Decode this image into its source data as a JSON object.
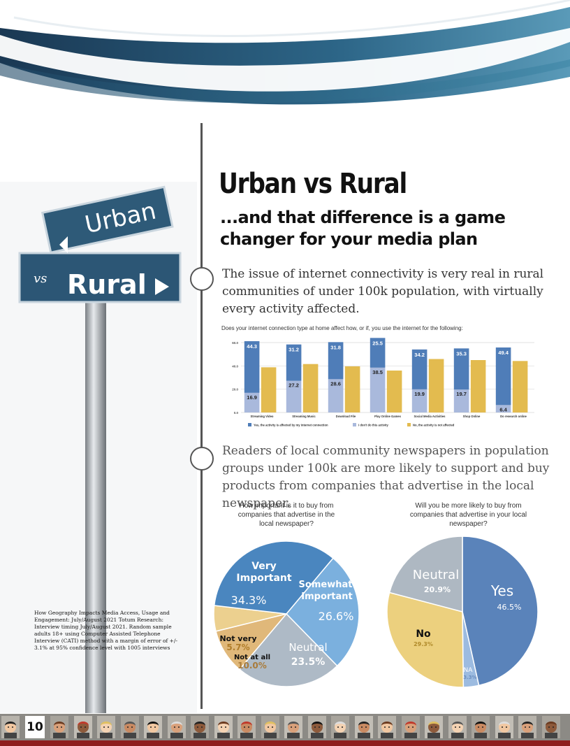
{
  "page": {
    "title": "Urban vs Rural",
    "subtitle": "...and that difference is a game changer for your media plan",
    "paragraph1": "The issue of internet connectivity is very real in rural communities of under 100k population, with virtually every activity affected.",
    "paragraph2": "Readers of local community newspapers in population groups under 100k are more likely to support and buy products from companies that advertise in the local newspaper.",
    "page_number": "10",
    "source_note": "How Geography Impacts Media Access, Usage and Engagement: July/August 2021 Totum Research: Interview timing July/August 2021. Random sample adults 18+ using Computer Assisted Telephone Interview (CATI) method with a margin of error of +/- 3.1% at 95% confidence level with 1005 interviews"
  },
  "sign": {
    "top": "Urban",
    "middle": "vs",
    "bottom": "Rural"
  },
  "colors": {
    "blue": "#4f7db8",
    "light_blue": "#a9b9dc",
    "gold": "#e3bb4f",
    "header_dark": "#1b3b57",
    "header_teal": "#3d86a6"
  },
  "chart_data": [
    {
      "type": "bar",
      "title": "Does your internet connection type at home affect how, or if, you use the internet for the following:",
      "categories": [
        "Streaming Video",
        "Streaming Music",
        "Download File",
        "Play Online Games",
        "Social Media Activities",
        "Shop Online",
        "Do research online"
      ],
      "series": [
        {
          "name": "Yes, the activity is affected by my internet connection",
          "values": [
            44.3,
            31.2,
            31.8,
            25.5,
            34.2,
            35.3,
            49.4
          ],
          "color": "#4f7db8"
        },
        {
          "name": "I don't do this activity",
          "values": [
            16.9,
            27.2,
            28.6,
            38.5,
            19.9,
            19.7,
            6.4
          ],
          "color": "#a9b9dc"
        },
        {
          "name": "No, the activity is not affected",
          "values": [
            38.8,
            41.6,
            39.6,
            36.0,
            45.9,
            45.0,
            44.2
          ],
          "color": "#e3bb4f"
        }
      ],
      "ylim": [
        0,
        60
      ],
      "yticks": [
        "0.0",
        "20.0",
        "40.0",
        "60.0"
      ],
      "grid": true,
      "legend": "bottom"
    },
    {
      "type": "pie",
      "title": "How important is it to buy from companies that advertise in the local newspaper?",
      "slices": [
        {
          "label": "Very Important",
          "value": 34.3,
          "display": "34.3%",
          "color": "#4a86bf"
        },
        {
          "label": "Somewhat Important",
          "value": 26.6,
          "display": "26.6%",
          "color": "#7bb0de"
        },
        {
          "label": "Neutral",
          "value": 23.5,
          "display": "23.5%",
          "color": "#aebac6"
        },
        {
          "label": "Not at all",
          "value": 10.0,
          "display": "10.0%",
          "color": "#e0b87a"
        },
        {
          "label": "Not very",
          "value": 5.7,
          "display": "5.7%",
          "color": "#ecd08f"
        }
      ]
    },
    {
      "type": "pie",
      "title": "Will you be more likely to buy from companies that advertise in your local newspaper?",
      "slices": [
        {
          "label": "Yes",
          "value": 46.5,
          "display": "46.5%",
          "color": "#5a83ba"
        },
        {
          "label": "NA",
          "value": 3.3,
          "display": "3.3%",
          "color": "#9cbbe0"
        },
        {
          "label": "No",
          "value": 29.3,
          "display": "29.3%",
          "color": "#ecd07e"
        },
        {
          "label": "Neutral",
          "value": 20.9,
          "display": "20.9%",
          "color": "#aeb8c2"
        }
      ]
    }
  ]
}
